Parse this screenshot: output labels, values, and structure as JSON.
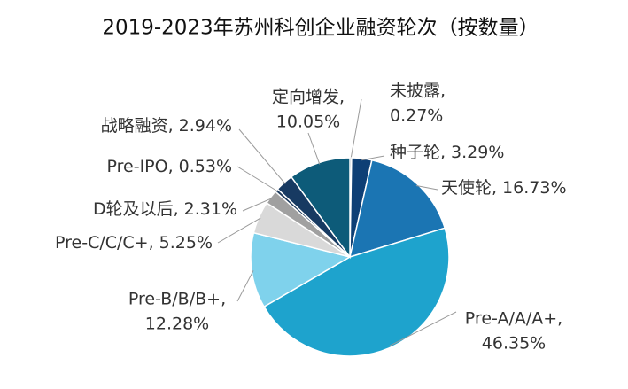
{
  "chart_data": {
    "type": "pie",
    "title": "2019-2023年苏州科创企业融资轮次（按数量）",
    "categories": [
      "未披露,",
      "种子轮,",
      "天使轮,",
      "Pre-A/A/A+,",
      "Pre-B/B/B+,",
      "Pre-C/C/C+,",
      "D轮及以后,",
      "Pre-IPO,",
      "战略融资,",
      "定向增发,"
    ],
    "values": [
      0.27,
      3.29,
      16.73,
      46.35,
      12.28,
      5.25,
      2.31,
      0.53,
      2.94,
      10.05
    ],
    "value_labels": [
      "0.27%",
      "3.29%",
      "16.73%",
      "46.35%",
      "12.28%",
      "5.25%",
      "2.31%",
      "0.53%",
      "2.94%",
      "10.05%"
    ],
    "colors": [
      "#0b2f5c",
      "#0e3f75",
      "#1b75b3",
      "#1ea3cd",
      "#7fd2ec",
      "#d9d9d9",
      "#a0a0a0",
      "#1d3a5c",
      "#173a62",
      "#0d5b79"
    ]
  }
}
